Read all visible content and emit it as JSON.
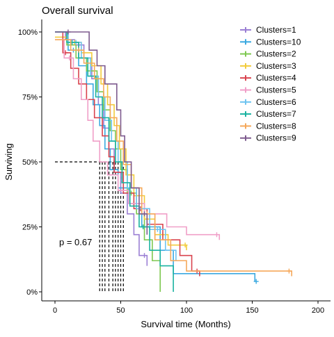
{
  "chart_data": {
    "type": "line",
    "title": "Overall survival",
    "xlabel": "Survival time (Months)",
    "ylabel": "Surviving",
    "xlim": [
      -5,
      205
    ],
    "ylim": [
      0,
      1
    ],
    "x_ticks": [
      0,
      50,
      100,
      150,
      200
    ],
    "y_ticks": [
      0,
      0.25,
      0.5,
      0.75,
      1.0
    ],
    "y_tick_labels": [
      "0%",
      "25%",
      "50%",
      "75%",
      "100%"
    ],
    "annotation": "p = 0.67",
    "legend_position": "top-right",
    "median_survival": [
      34,
      36,
      38,
      41,
      44,
      46,
      48,
      50,
      52
    ],
    "series": [
      {
        "name": "Clusters=1",
        "color": "#9b7fd4",
        "points": [
          [
            0,
            1.0
          ],
          [
            8,
            0.97
          ],
          [
            15,
            0.95
          ],
          [
            22,
            0.9
          ],
          [
            28,
            0.82
          ],
          [
            33,
            0.72
          ],
          [
            37,
            0.63
          ],
          [
            41,
            0.55
          ],
          [
            45,
            0.46
          ],
          [
            50,
            0.38
          ],
          [
            55,
            0.3
          ],
          [
            60,
            0.22
          ],
          [
            64,
            0.14
          ],
          [
            70,
            0.1
          ]
        ],
        "censored": [
          [
            10,
            1.0
          ],
          [
            18,
            0.95
          ],
          [
            68,
            0.1
          ]
        ]
      },
      {
        "name": "Clusters=10",
        "color": "#3aa9e0",
        "points": [
          [
            0,
            1.0
          ],
          [
            10,
            0.93
          ],
          [
            18,
            0.87
          ],
          [
            24,
            0.8
          ],
          [
            29,
            0.72
          ],
          [
            34,
            0.64
          ],
          [
            38,
            0.55
          ],
          [
            42,
            0.47
          ],
          [
            48,
            0.4
          ],
          [
            56,
            0.34
          ],
          [
            66,
            0.25
          ],
          [
            80,
            0.16
          ],
          [
            90,
            0.07
          ],
          [
            152,
            0.04
          ]
        ],
        "censored": [
          [
            14,
            1.0
          ],
          [
            60,
            0.34
          ],
          [
            153,
            0.04
          ]
        ]
      },
      {
        "name": "Clusters=2",
        "color": "#7ec850",
        "points": [
          [
            0,
            1.0
          ],
          [
            9,
            0.95
          ],
          [
            16,
            0.9
          ],
          [
            24,
            0.85
          ],
          [
            32,
            0.77
          ],
          [
            37,
            0.7
          ],
          [
            42,
            0.62
          ],
          [
            46,
            0.55
          ],
          [
            50,
            0.47
          ],
          [
            55,
            0.38
          ],
          [
            62,
            0.3
          ],
          [
            68,
            0.2
          ],
          [
            74,
            0.12
          ],
          [
            80,
            0.0
          ]
        ],
        "censored": [
          [
            12,
            0.95
          ],
          [
            58,
            0.38
          ]
        ]
      },
      {
        "name": "Clusters=3",
        "color": "#f2cc3c",
        "points": [
          [
            0,
            0.98
          ],
          [
            10,
            0.96
          ],
          [
            20,
            0.92
          ],
          [
            28,
            0.87
          ],
          [
            35,
            0.8
          ],
          [
            40,
            0.72
          ],
          [
            45,
            0.64
          ],
          [
            49,
            0.55
          ],
          [
            54,
            0.45
          ],
          [
            60,
            0.37
          ],
          [
            68,
            0.28
          ],
          [
            76,
            0.22
          ],
          [
            86,
            0.18
          ],
          [
            100,
            0.16
          ]
        ],
        "censored": [
          [
            15,
            0.96
          ],
          [
            62,
            0.37
          ],
          [
            82,
            0.22
          ],
          [
            99,
            0.16
          ]
        ]
      },
      {
        "name": "Clusters=4",
        "color": "#d9434e",
        "points": [
          [
            0,
            1.0
          ],
          [
            6,
            0.92
          ],
          [
            12,
            0.86
          ],
          [
            18,
            0.8
          ],
          [
            24,
            0.74
          ],
          [
            30,
            0.67
          ],
          [
            36,
            0.6
          ],
          [
            41,
            0.52
          ],
          [
            45,
            0.46
          ],
          [
            52,
            0.38
          ],
          [
            60,
            0.32
          ],
          [
            70,
            0.26
          ],
          [
            82,
            0.2
          ],
          [
            95,
            0.14
          ],
          [
            104,
            0.08
          ],
          [
            110,
            0.06
          ]
        ],
        "censored": [
          [
            8,
            0.92
          ],
          [
            65,
            0.32
          ],
          [
            108,
            0.06
          ]
        ]
      },
      {
        "name": "Clusters=5",
        "color": "#f09fc8",
        "points": [
          [
            0,
            0.97
          ],
          [
            7,
            0.9
          ],
          [
            14,
            0.82
          ],
          [
            20,
            0.74
          ],
          [
            25,
            0.66
          ],
          [
            29,
            0.58
          ],
          [
            34,
            0.5
          ],
          [
            40,
            0.45
          ],
          [
            48,
            0.39
          ],
          [
            56,
            0.34
          ],
          [
            68,
            0.3
          ],
          [
            85,
            0.25
          ],
          [
            100,
            0.22
          ],
          [
            125,
            0.2
          ]
        ],
        "censored": [
          [
            11,
            0.9
          ],
          [
            72,
            0.3
          ],
          [
            123,
            0.2
          ]
        ]
      },
      {
        "name": "Clusters=6",
        "color": "#6dc3f0",
        "points": [
          [
            0,
            1.0
          ],
          [
            10,
            0.96
          ],
          [
            20,
            0.9
          ],
          [
            27,
            0.83
          ],
          [
            33,
            0.75
          ],
          [
            38,
            0.66
          ],
          [
            43,
            0.58
          ],
          [
            48,
            0.5
          ],
          [
            55,
            0.4
          ],
          [
            62,
            0.32
          ],
          [
            72,
            0.24
          ],
          [
            84,
            0.16
          ],
          [
            92,
            0.12
          ]
        ],
        "censored": [
          [
            16,
            0.96
          ],
          [
            78,
            0.24
          ]
        ]
      },
      {
        "name": "Clusters=7",
        "color": "#19b2a0",
        "points": [
          [
            0,
            1.0
          ],
          [
            9,
            0.96
          ],
          [
            18,
            0.9
          ],
          [
            25,
            0.83
          ],
          [
            31,
            0.75
          ],
          [
            36,
            0.67
          ],
          [
            41,
            0.58
          ],
          [
            46,
            0.5
          ],
          [
            51,
            0.42
          ],
          [
            57,
            0.33
          ],
          [
            64,
            0.25
          ],
          [
            72,
            0.16
          ],
          [
            80,
            0.1
          ],
          [
            90,
            0.0
          ]
        ],
        "censored": [
          [
            13,
            0.96
          ],
          [
            67,
            0.25
          ]
        ]
      },
      {
        "name": "Clusters=8",
        "color": "#f5a85a",
        "points": [
          [
            0,
            0.97
          ],
          [
            12,
            0.93
          ],
          [
            22,
            0.88
          ],
          [
            30,
            0.82
          ],
          [
            37,
            0.75
          ],
          [
            42,
            0.67
          ],
          [
            47,
            0.58
          ],
          [
            52,
            0.49
          ],
          [
            58,
            0.4
          ],
          [
            66,
            0.3
          ],
          [
            76,
            0.2
          ],
          [
            88,
            0.12
          ],
          [
            100,
            0.08
          ],
          [
            180,
            0.06
          ]
        ],
        "censored": [
          [
            18,
            0.93
          ],
          [
            70,
            0.3
          ],
          [
            178,
            0.06
          ]
        ]
      },
      {
        "name": "Clusters=9",
        "color": "#7d5a8e",
        "points": [
          [
            0,
            1.0
          ],
          [
            20,
            1.0
          ],
          [
            26,
            0.93
          ],
          [
            32,
            0.87
          ],
          [
            38,
            0.8
          ],
          [
            44,
            0.8
          ],
          [
            47,
            0.7
          ],
          [
            50,
            0.6
          ],
          [
            53,
            0.5
          ],
          [
            58,
            0.4
          ],
          [
            64,
            0.3
          ],
          [
            70,
            0.22
          ]
        ],
        "censored": [
          [
            10,
            1.0
          ],
          [
            68,
            0.22
          ]
        ]
      }
    ]
  }
}
